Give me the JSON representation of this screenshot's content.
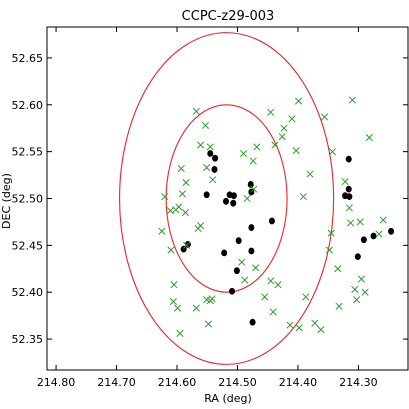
{
  "chart_data": {
    "type": "scatter",
    "title": "CCPC-z29-003",
    "xlabel": "RA (deg)",
    "ylabel": "DEC (deg)",
    "xlim": [
      214.815,
      214.218
    ],
    "ylim": [
      52.317,
      52.683
    ],
    "x_inverted": true,
    "grid": false,
    "x_ticks": [
      214.8,
      214.7,
      214.6,
      214.5,
      214.4,
      214.3
    ],
    "x_tick_labels": [
      "214.80",
      "214.70",
      "214.60",
      "214.50",
      "214.40",
      "214.30"
    ],
    "y_ticks": [
      52.35,
      52.4,
      52.45,
      52.5,
      52.55,
      52.6,
      52.65
    ],
    "y_tick_labels": [
      "52.35",
      "52.40",
      "52.45",
      "52.50",
      "52.55",
      "52.60",
      "52.65"
    ],
    "circles": [
      {
        "center": [
          214.518,
          52.5
        ],
        "radius_deg": 0.1,
        "color": "#e8262b"
      },
      {
        "center": [
          214.518,
          52.5
        ],
        "radius_deg": 0.177,
        "color": "#e8262b"
      }
    ],
    "series": [
      {
        "marker": "o",
        "color": "#000000",
        "points": [
          [
            214.545,
            52.548
          ],
          [
            214.537,
            52.543
          ],
          [
            214.538,
            52.531
          ],
          [
            214.551,
            52.504
          ],
          [
            214.513,
            52.504
          ],
          [
            214.506,
            52.503
          ],
          [
            214.519,
            52.497
          ],
          [
            214.507,
            52.495
          ],
          [
            214.478,
            52.515
          ],
          [
            214.477,
            52.507
          ],
          [
            214.443,
            52.476
          ],
          [
            214.477,
            52.469
          ],
          [
            214.582,
            52.451
          ],
          [
            214.589,
            52.446
          ],
          [
            214.498,
            52.455
          ],
          [
            214.477,
            52.444
          ],
          [
            214.522,
            52.442
          ],
          [
            214.501,
            52.423
          ],
          [
            214.509,
            52.401
          ],
          [
            214.475,
            52.368
          ],
          [
            214.316,
            52.542
          ],
          [
            214.322,
            52.503
          ],
          [
            214.316,
            52.51
          ],
          [
            214.315,
            52.502
          ],
          [
            214.246,
            52.465
          ],
          [
            214.275,
            52.46
          ],
          [
            214.291,
            52.456
          ],
          [
            214.301,
            52.438
          ]
        ]
      },
      {
        "marker": "x",
        "color": "#2e9b2e",
        "points": [
          [
            214.568,
            52.593
          ],
          [
            214.553,
            52.578
          ],
          [
            214.561,
            52.557
          ],
          [
            214.545,
            52.555
          ],
          [
            214.551,
            52.533
          ],
          [
            214.593,
            52.532
          ],
          [
            214.585,
            52.517
          ],
          [
            214.62,
            52.502
          ],
          [
            214.602,
            52.488
          ],
          [
            214.591,
            52.505
          ],
          [
            214.597,
            52.491
          ],
          [
            214.611,
            52.487
          ],
          [
            214.586,
            52.485
          ],
          [
            214.561,
            52.471
          ],
          [
            214.565,
            52.468
          ],
          [
            214.541,
            52.52
          ],
          [
            214.49,
            52.548
          ],
          [
            214.474,
            52.54
          ],
          [
            214.468,
            52.555
          ],
          [
            214.473,
            52.51
          ],
          [
            214.484,
            52.5
          ],
          [
            214.445,
            52.592
          ],
          [
            214.423,
            52.575
          ],
          [
            214.41,
            52.585
          ],
          [
            214.426,
            52.566
          ],
          [
            214.438,
            52.557
          ],
          [
            214.399,
            52.604
          ],
          [
            214.403,
            52.551
          ],
          [
            214.38,
            52.526
          ],
          [
            214.391,
            52.502
          ],
          [
            214.356,
            52.587
          ],
          [
            214.343,
            52.55
          ],
          [
            214.322,
            52.518
          ],
          [
            214.31,
            52.605
          ],
          [
            214.282,
            52.565
          ],
          [
            214.259,
            52.477
          ],
          [
            214.266,
            52.462
          ],
          [
            214.625,
            52.465
          ],
          [
            214.61,
            52.445
          ],
          [
            214.584,
            52.45
          ],
          [
            214.605,
            52.408
          ],
          [
            214.599,
            52.383
          ],
          [
            214.606,
            52.39
          ],
          [
            214.595,
            52.356
          ],
          [
            214.568,
            52.383
          ],
          [
            214.551,
            52.392
          ],
          [
            214.542,
            52.393
          ],
          [
            214.548,
            52.366
          ],
          [
            214.545,
            52.391
          ],
          [
            214.493,
            52.432
          ],
          [
            214.488,
            52.413
          ],
          [
            214.47,
            52.426
          ],
          [
            214.455,
            52.395
          ],
          [
            214.445,
            52.412
          ],
          [
            214.433,
            52.408
          ],
          [
            214.441,
            52.379
          ],
          [
            214.387,
            52.395
          ],
          [
            214.413,
            52.365
          ],
          [
            214.398,
            52.362
          ],
          [
            214.372,
            52.367
          ],
          [
            214.362,
            52.36
          ],
          [
            214.334,
            52.425
          ],
          [
            214.348,
            52.445
          ],
          [
            214.345,
            52.463
          ],
          [
            214.332,
            52.385
          ],
          [
            214.306,
            52.403
          ],
          [
            214.303,
            52.392
          ],
          [
            214.295,
            52.414
          ],
          [
            214.289,
            52.4
          ],
          [
            214.297,
            52.475
          ],
          [
            214.313,
            52.474
          ],
          [
            214.315,
            52.49
          ]
        ]
      }
    ]
  }
}
